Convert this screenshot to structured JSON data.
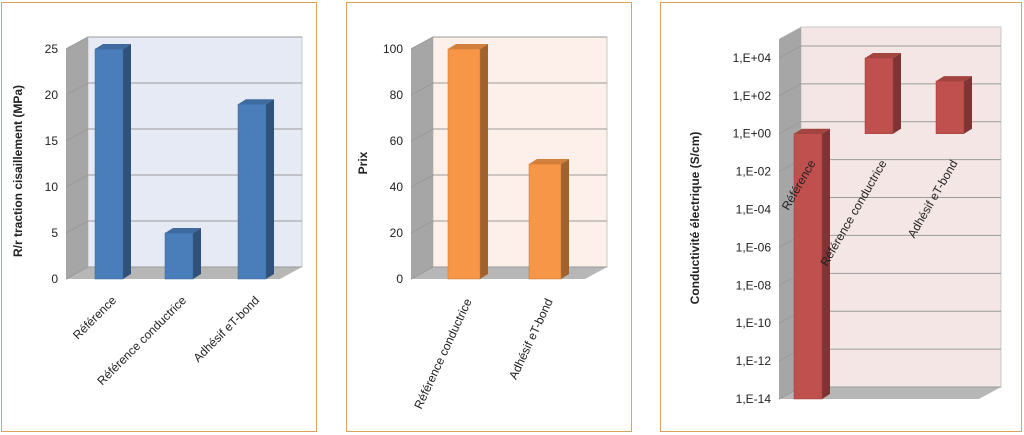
{
  "chart_data": [
    {
      "type": "bar",
      "categories": [
        "Référence",
        "Référence conductrice",
        "Adhésif eT-bond"
      ],
      "values": [
        25,
        5,
        19
      ],
      "ylabel": "R/r traction cisaillement (MPa)",
      "ylim": [
        0,
        25
      ],
      "yticks": [
        "0",
        "5",
        "10",
        "15",
        "20",
        "25"
      ],
      "yticks_values": [
        0,
        5,
        10,
        15,
        20,
        25
      ],
      "color": "#4a7ebb",
      "wall_color": "#e6eaf5",
      "grid": true
    },
    {
      "type": "bar",
      "categories": [
        "Référence conductrice",
        "Adhésif eT-bond"
      ],
      "values": [
        100,
        50
      ],
      "ylabel": "Prix",
      "ylim": [
        0,
        100
      ],
      "yticks": [
        "0",
        "20",
        "40",
        "60",
        "80",
        "100"
      ],
      "yticks_values": [
        0,
        20,
        40,
        60,
        80,
        100
      ],
      "color": "#f79646",
      "wall_color": "#fdf0ea",
      "grid": true
    },
    {
      "type": "bar",
      "categories": [
        "Référence",
        "Référence conductrice",
        "Adhésif eT-bond"
      ],
      "values": [
        1,
        10000,
        600
      ],
      "ylabel": "Conductivité électrique (S/cm)",
      "yscale": "log",
      "ylim": [
        1e-14,
        100000.0
      ],
      "yticks": [
        "1,E-14",
        "1,E-12",
        "1,E-10",
        "1,E-08",
        "1,E-06",
        "1,E-04",
        "1,E-02",
        "1,E+00",
        "1,E+02",
        "1,E+04"
      ],
      "yticks_values": [
        1e-14,
        1e-12,
        1e-10,
        1e-08,
        1e-06,
        0.0001,
        0.01,
        1,
        100,
        10000
      ],
      "color": "#c0504d",
      "wall_color": "#f5e6e6",
      "grid": true
    }
  ]
}
